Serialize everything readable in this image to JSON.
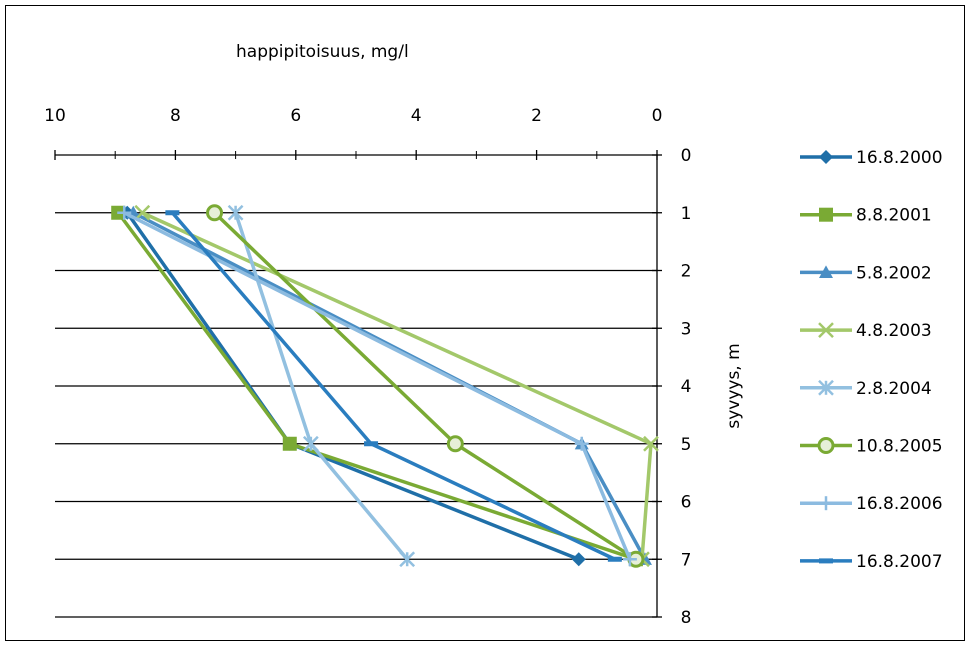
{
  "chart_data": {
    "type": "line",
    "title": "",
    "xlabel": "happipitoisuus, mg/l",
    "ylabel": "syvyys, m",
    "xlim": [
      10,
      0
    ],
    "ylim": [
      0,
      8
    ],
    "x_ticks": [
      "10",
      "8",
      "6",
      "4",
      "2",
      "0"
    ],
    "y_ticks": [
      "0",
      "1",
      "2",
      "3",
      "4",
      "5",
      "6",
      "7",
      "8"
    ],
    "x_reversed": true,
    "y_reversed": true,
    "grid": "horizontal",
    "legend_position": "right",
    "series": [
      {
        "name": "16.8.2000",
        "color": "#1f6fa8",
        "marker": "diamond",
        "points": [
          {
            "x": 8.8,
            "y": 1
          },
          {
            "x": 6.1,
            "y": 5
          },
          {
            "x": 1.3,
            "y": 7
          }
        ]
      },
      {
        "name": "8.8.2001",
        "color": "#7aaa34",
        "marker": "square",
        "points": [
          {
            "x": 8.95,
            "y": 1
          },
          {
            "x": 6.1,
            "y": 5
          },
          {
            "x": 0.35,
            "y": 7
          }
        ]
      },
      {
        "name": "5.8.2002",
        "color": "#4a8ec4",
        "marker": "triangle",
        "points": [
          {
            "x": 8.7,
            "y": 1
          },
          {
            "x": 1.25,
            "y": 5
          },
          {
            "x": 0.2,
            "y": 7
          }
        ]
      },
      {
        "name": "4.8.2003",
        "color": "#a3c86a",
        "marker": "x",
        "points": [
          {
            "x": 8.55,
            "y": 1
          },
          {
            "x": 0.1,
            "y": 5
          },
          {
            "x": 0.25,
            "y": 7
          }
        ]
      },
      {
        "name": "2.8.2004",
        "color": "#92c0e0",
        "marker": "star",
        "points": [
          {
            "x": 7.0,
            "y": 1
          },
          {
            "x": 5.75,
            "y": 5
          },
          {
            "x": 4.15,
            "y": 7
          }
        ]
      },
      {
        "name": "10.8.2005",
        "color": "#7aaa34",
        "marker": "circle",
        "points": [
          {
            "x": 7.35,
            "y": 1
          },
          {
            "x": 3.35,
            "y": 5
          },
          {
            "x": 0.35,
            "y": 7
          }
        ]
      },
      {
        "name": "16.8.2006",
        "color": "#8cbbe0",
        "marker": "plus",
        "points": [
          {
            "x": 8.85,
            "y": 1
          },
          {
            "x": 1.25,
            "y": 5
          },
          {
            "x": 0.45,
            "y": 7
          }
        ]
      },
      {
        "name": "16.8.2007",
        "color": "#2a7dbf",
        "marker": "dash",
        "points": [
          {
            "x": 8.05,
            "y": 1
          },
          {
            "x": 4.75,
            "y": 5
          },
          {
            "x": 0.7,
            "y": 7
          }
        ]
      }
    ]
  }
}
